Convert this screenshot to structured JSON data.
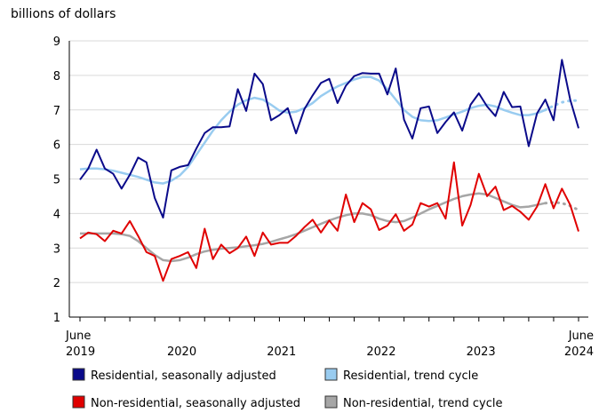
{
  "chart_data": {
    "type": "line",
    "ylabel": "billions of dollars",
    "ylim": [
      1,
      9
    ],
    "yticks": [
      1,
      2,
      3,
      4,
      5,
      6,
      7,
      8,
      9
    ],
    "x_start_label": [
      "June",
      "2019"
    ],
    "x_end_label": [
      "June",
      "2024"
    ],
    "year_labels": [
      "2020",
      "2021",
      "2022",
      "2023"
    ],
    "grid": "horizontal",
    "legend_position": "bottom",
    "series": [
      {
        "name": "Residential, seasonally adjusted",
        "color": "#0a0a8a",
        "style": "solid",
        "values": [
          4.98,
          5.3,
          5.85,
          5.3,
          5.15,
          4.72,
          5.12,
          5.62,
          5.48,
          4.45,
          3.88,
          5.25,
          5.35,
          5.4,
          5.88,
          6.33,
          6.5,
          6.5,
          6.52,
          7.6,
          6.97,
          8.05,
          7.75,
          6.7,
          6.85,
          7.05,
          6.32,
          7.02,
          7.42,
          7.78,
          7.9,
          7.2,
          7.7,
          7.98,
          8.07,
          8.05,
          8.05,
          7.45,
          8.2,
          6.72,
          6.17,
          7.05,
          7.1,
          6.33,
          6.65,
          6.93,
          6.4,
          7.15,
          7.48,
          7.1,
          6.82,
          7.52,
          7.08,
          7.1,
          5.95,
          6.9,
          7.3,
          6.7,
          8.45,
          7.3,
          6.47
        ]
      },
      {
        "name": "Residential, trend cycle",
        "color": "#99ccf0",
        "style": "solid-then-dotted",
        "values": [
          5.28,
          5.3,
          5.3,
          5.28,
          5.24,
          5.18,
          5.12,
          5.06,
          4.98,
          4.9,
          4.87,
          4.95,
          5.1,
          5.35,
          5.7,
          6.05,
          6.4,
          6.7,
          6.95,
          7.15,
          7.28,
          7.35,
          7.3,
          7.15,
          6.98,
          6.92,
          6.95,
          7.05,
          7.2,
          7.4,
          7.55,
          7.68,
          7.78,
          7.88,
          7.95,
          7.95,
          7.85,
          7.6,
          7.3,
          7.0,
          6.8,
          6.7,
          6.68,
          6.7,
          6.78,
          6.87,
          6.95,
          7.05,
          7.12,
          7.15,
          7.1,
          7.0,
          6.92,
          6.85,
          6.85,
          6.9,
          7.0,
          7.12,
          7.22,
          7.27,
          7.27
        ]
      },
      {
        "name": "Non-residential, seasonally adjusted",
        "color": "#e00000",
        "style": "solid",
        "values": [
          3.28,
          3.45,
          3.4,
          3.2,
          3.5,
          3.42,
          3.78,
          3.35,
          2.88,
          2.77,
          2.05,
          2.68,
          2.77,
          2.88,
          2.42,
          3.56,
          2.68,
          3.1,
          2.85,
          3.0,
          3.33,
          2.77,
          3.45,
          3.1,
          3.15,
          3.15,
          3.35,
          3.6,
          3.82,
          3.45,
          3.8,
          3.5,
          4.55,
          3.75,
          4.3,
          4.12,
          3.52,
          3.65,
          3.98,
          3.5,
          3.68,
          4.3,
          4.2,
          4.3,
          3.85,
          5.48,
          3.65,
          4.25,
          5.15,
          4.5,
          4.78,
          4.1,
          4.22,
          4.05,
          3.82,
          4.2,
          4.85,
          4.15,
          4.72,
          4.25,
          3.48
        ]
      },
      {
        "name": "Non-residential, trend cycle",
        "color": "#a6a6a6",
        "style": "solid-then-dotted",
        "values": [
          3.42,
          3.42,
          3.42,
          3.42,
          3.42,
          3.4,
          3.35,
          3.2,
          3.0,
          2.8,
          2.65,
          2.62,
          2.65,
          2.72,
          2.82,
          2.9,
          2.95,
          2.98,
          3.0,
          3.02,
          3.05,
          3.08,
          3.12,
          3.18,
          3.25,
          3.32,
          3.4,
          3.5,
          3.6,
          3.7,
          3.8,
          3.88,
          3.95,
          4.0,
          4.0,
          3.95,
          3.85,
          3.78,
          3.75,
          3.78,
          3.88,
          4.0,
          4.12,
          4.22,
          4.32,
          4.42,
          4.5,
          4.55,
          4.58,
          4.55,
          4.45,
          4.35,
          4.25,
          4.18,
          4.2,
          4.25,
          4.3,
          4.32,
          4.3,
          4.22,
          4.1
        ]
      }
    ]
  },
  "legend": {
    "items": [
      {
        "label": "Residential, seasonally adjusted",
        "color": "#0a0a8a"
      },
      {
        "label": "Residential, trend cycle",
        "color": "#99ccf0"
      },
      {
        "label": "Non-residential, seasonally adjusted",
        "color": "#e00000"
      },
      {
        "label": "Non-residential, trend cycle",
        "color": "#a6a6a6"
      }
    ]
  }
}
